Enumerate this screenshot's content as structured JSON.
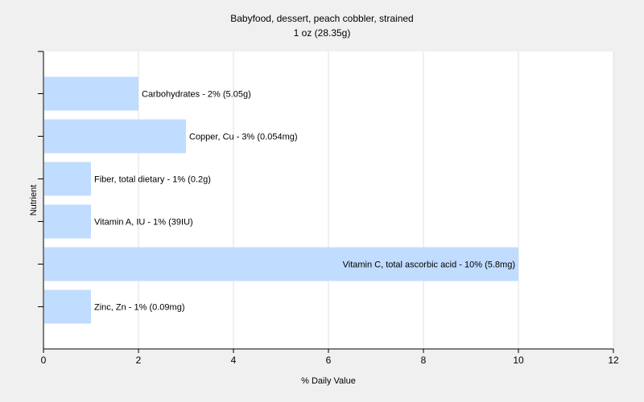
{
  "chart_data": {
    "type": "bar",
    "orientation": "horizontal",
    "title": "Babyfood, dessert, peach cobbler, strained",
    "subtitle": "1 oz (28.35g)",
    "xlabel": "% Daily Value",
    "ylabel": "Nutrient",
    "xlim": [
      0,
      12
    ],
    "xticks": [
      "0",
      "2",
      "4",
      "6",
      "8",
      "10",
      "12"
    ],
    "grid": true,
    "bar_color": "#c0dcff",
    "categories": [
      "Carbohydrates",
      "Copper, Cu",
      "Fiber, total dietary",
      "Vitamin A, IU",
      "Vitamin C, total ascorbic acid",
      "Zinc, Zn"
    ],
    "values": [
      2,
      3,
      1,
      1,
      10,
      1
    ],
    "bar_labels": [
      "Carbohydrates - 2% (5.05g)",
      "Copper, Cu - 3% (0.054mg)",
      "Fiber, total dietary - 1% (0.2g)",
      "Vitamin A, IU - 1% (39IU)",
      "Vitamin C, total ascorbic acid - 10% (5.8mg)",
      "Zinc, Zn - 1% (0.09mg)"
    ]
  }
}
